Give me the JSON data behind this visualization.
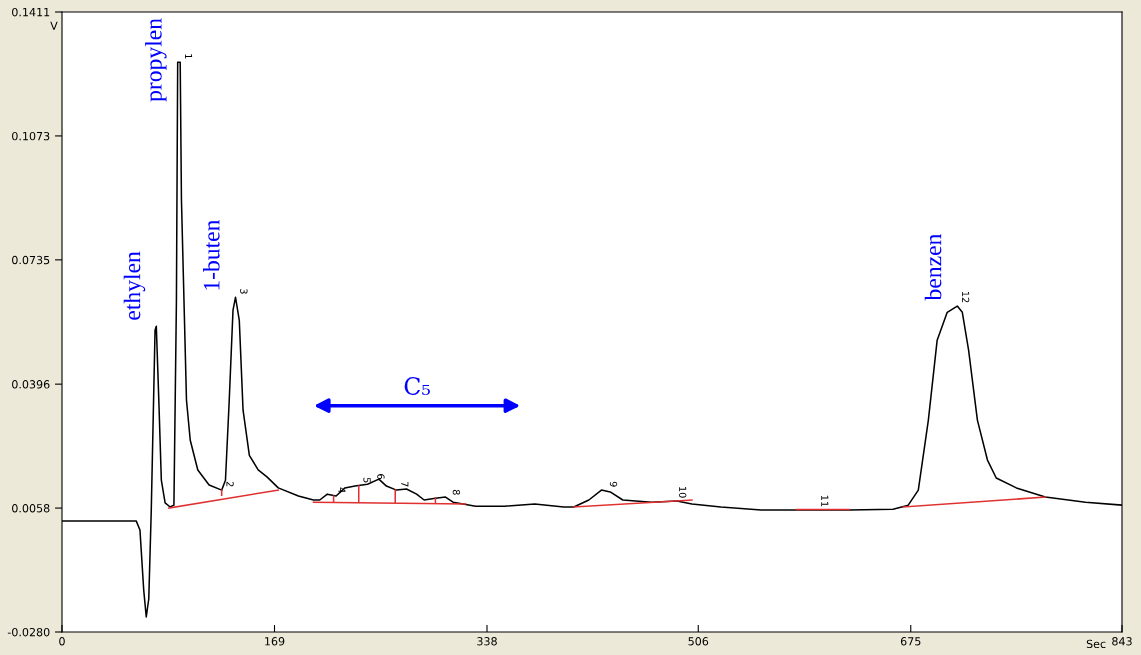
{
  "chart_data": {
    "type": "line",
    "xlabel": "Sec",
    "ylabel": "V",
    "xlim": [
      0,
      843
    ],
    "xticks": [
      0,
      169,
      338,
      506,
      675,
      843
    ],
    "ylim": [
      -0.028,
      0.1411
    ],
    "yticks": [
      {
        "value": -0.028,
        "label": "-0.0280"
      },
      0.0058,
      0.0396,
      0.0735,
      0.1073,
      0.1411
    ],
    "grid": false,
    "marker": "none",
    "line_style": "solid",
    "series": [
      {
        "color": "#000000",
        "x": [
          0,
          59,
          62,
          65,
          67,
          69,
          71,
          74,
          75,
          77,
          79,
          82,
          86,
          89,
          91,
          92,
          94,
          95,
          99,
          102,
          108,
          117,
          127,
          130,
          133,
          136,
          138,
          141,
          144,
          149,
          156,
          163,
          172,
          188,
          200,
          205,
          211,
          218,
          225,
          233,
          243,
          252,
          258,
          266,
          274,
          282,
          288,
          297,
          305,
          311,
          329,
          352,
          376,
          399,
          407,
          419,
          429,
          436,
          446,
          469,
          489,
          501,
          524,
          556,
          626,
          661,
          673,
          681,
          689,
          696,
          704,
          712,
          716,
          721,
          728,
          736,
          743,
          759,
          782,
          814,
          843
        ],
        "values": [
          0.0023,
          0.0023,
          -0.0002,
          -0.0166,
          -0.0239,
          -0.019,
          0.0053,
          0.0543,
          0.0554,
          0.0352,
          0.0134,
          0.0072,
          0.0061,
          0.0066,
          0.0625,
          0.1274,
          0.1274,
          0.0898,
          0.0352,
          0.0243,
          0.0162,
          0.0121,
          0.0107,
          0.0134,
          0.0352,
          0.0598,
          0.0633,
          0.057,
          0.0325,
          0.0202,
          0.0162,
          0.0143,
          0.0113,
          0.0091,
          0.008,
          0.008,
          0.0096,
          0.0091,
          0.0113,
          0.0118,
          0.0123,
          0.0137,
          0.0118,
          0.0107,
          0.011,
          0.0096,
          0.008,
          0.0085,
          0.0088,
          0.0074,
          0.0063,
          0.0063,
          0.0069,
          0.0061,
          0.0061,
          0.008,
          0.0107,
          0.0102,
          0.008,
          0.0074,
          0.0077,
          0.0069,
          0.0061,
          0.0053,
          0.0053,
          0.0055,
          0.0066,
          0.0107,
          0.0298,
          0.0516,
          0.0592,
          0.0609,
          0.0592,
          0.0489,
          0.0298,
          0.0189,
          0.014,
          0.0113,
          0.0088,
          0.0074,
          0.0066
        ]
      },
      {
        "color": "#e03030",
        "x": [
          85,
          172
        ],
        "values": [
          0.0058,
          0.0107
        ]
      },
      {
        "color": "#e03030",
        "x": [
          127,
          127
        ],
        "values": [
          0.0093,
          0.0107
        ]
      },
      {
        "color": "#e03030",
        "x": [
          200,
          321
        ],
        "values": [
          0.0074,
          0.0069
        ]
      },
      {
        "color": "#e03030",
        "x": [
          216,
          216
        ],
        "values": [
          0.0074,
          0.0091
        ]
      },
      {
        "color": "#e03030",
        "x": [
          236,
          236
        ],
        "values": [
          0.0074,
          0.0118
        ]
      },
      {
        "color": "#e03030",
        "x": [
          265,
          265
        ],
        "values": [
          0.0074,
          0.0107
        ]
      },
      {
        "color": "#e03030",
        "x": [
          297,
          297
        ],
        "values": [
          0.0072,
          0.0085
        ]
      },
      {
        "color": "#e03030",
        "x": [
          407,
          501
        ],
        "values": [
          0.0061,
          0.008
        ]
      },
      {
        "color": "#e03030",
        "x": [
          584,
          626
        ],
        "values": [
          0.0054,
          0.0054
        ]
      },
      {
        "color": "#e03030",
        "x": [
          669,
          782
        ],
        "values": [
          0.0061,
          0.0088
        ]
      }
    ],
    "annotations": [
      {
        "text": "ethylen",
        "x": 75,
        "y": 0.0554
      },
      {
        "text": "propylen",
        "x": 92,
        "y": 0.1274
      },
      {
        "text": "1-buten",
        "x": 138,
        "y": 0.0633
      },
      {
        "text": "benzen",
        "x": 712,
        "y": 0.0609
      },
      "C₅",
      {
        "text": "1",
        "x": 94,
        "y": 0.1274
      },
      {
        "text": "2",
        "x": 127,
        "y": 0.0107
      },
      {
        "text": "3",
        "x": 138,
        "y": 0.0633
      },
      {
        "text": "4",
        "x": 216,
        "y": 0.0091
      },
      {
        "text": "5",
        "x": 236,
        "y": 0.0118
      },
      {
        "text": "6",
        "x": 247,
        "y": 0.0128
      },
      {
        "text": "7",
        "x": 266,
        "y": 0.0107
      },
      {
        "text": "8",
        "x": 307,
        "y": 0.0085
      },
      {
        "text": "9",
        "x": 432,
        "y": 0.0107
      },
      {
        "text": "10",
        "x": 487,
        "y": 0.0077
      },
      {
        "text": "11",
        "x": 600,
        "y": 0.0053
      },
      {
        "text": "12",
        "x": 712,
        "y": 0.0609
      }
    ]
  }
}
